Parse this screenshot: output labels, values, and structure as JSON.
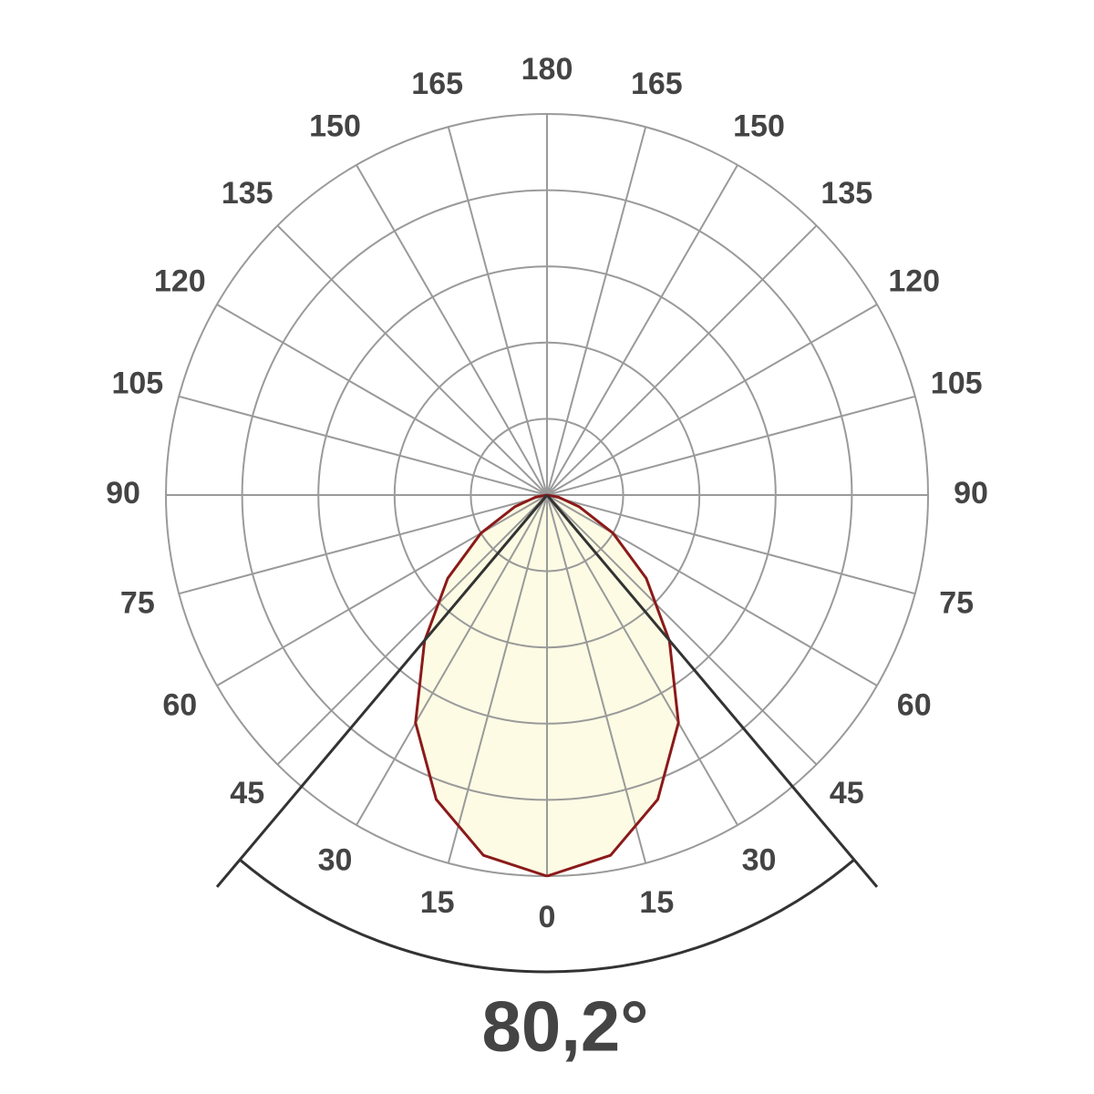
{
  "chart_data": {
    "type": "polar",
    "angle_ticks": [
      0,
      15,
      30,
      45,
      60,
      75,
      90,
      105,
      120,
      135,
      150,
      165,
      180
    ],
    "rlim": [
      0,
      100
    ],
    "rticks": [
      20,
      40,
      60,
      80,
      100
    ],
    "grid": true,
    "angles": [
      0,
      10,
      20,
      30,
      40,
      50,
      60,
      70,
      80,
      90
    ],
    "values": [
      100,
      96,
      85,
      69,
      50,
      34,
      20,
      9,
      3,
      0
    ],
    "color": "#8b1a1a",
    "fill": "#fdfbe4",
    "beam_angle": {
      "value": 80.2,
      "label": "80,2°"
    }
  }
}
